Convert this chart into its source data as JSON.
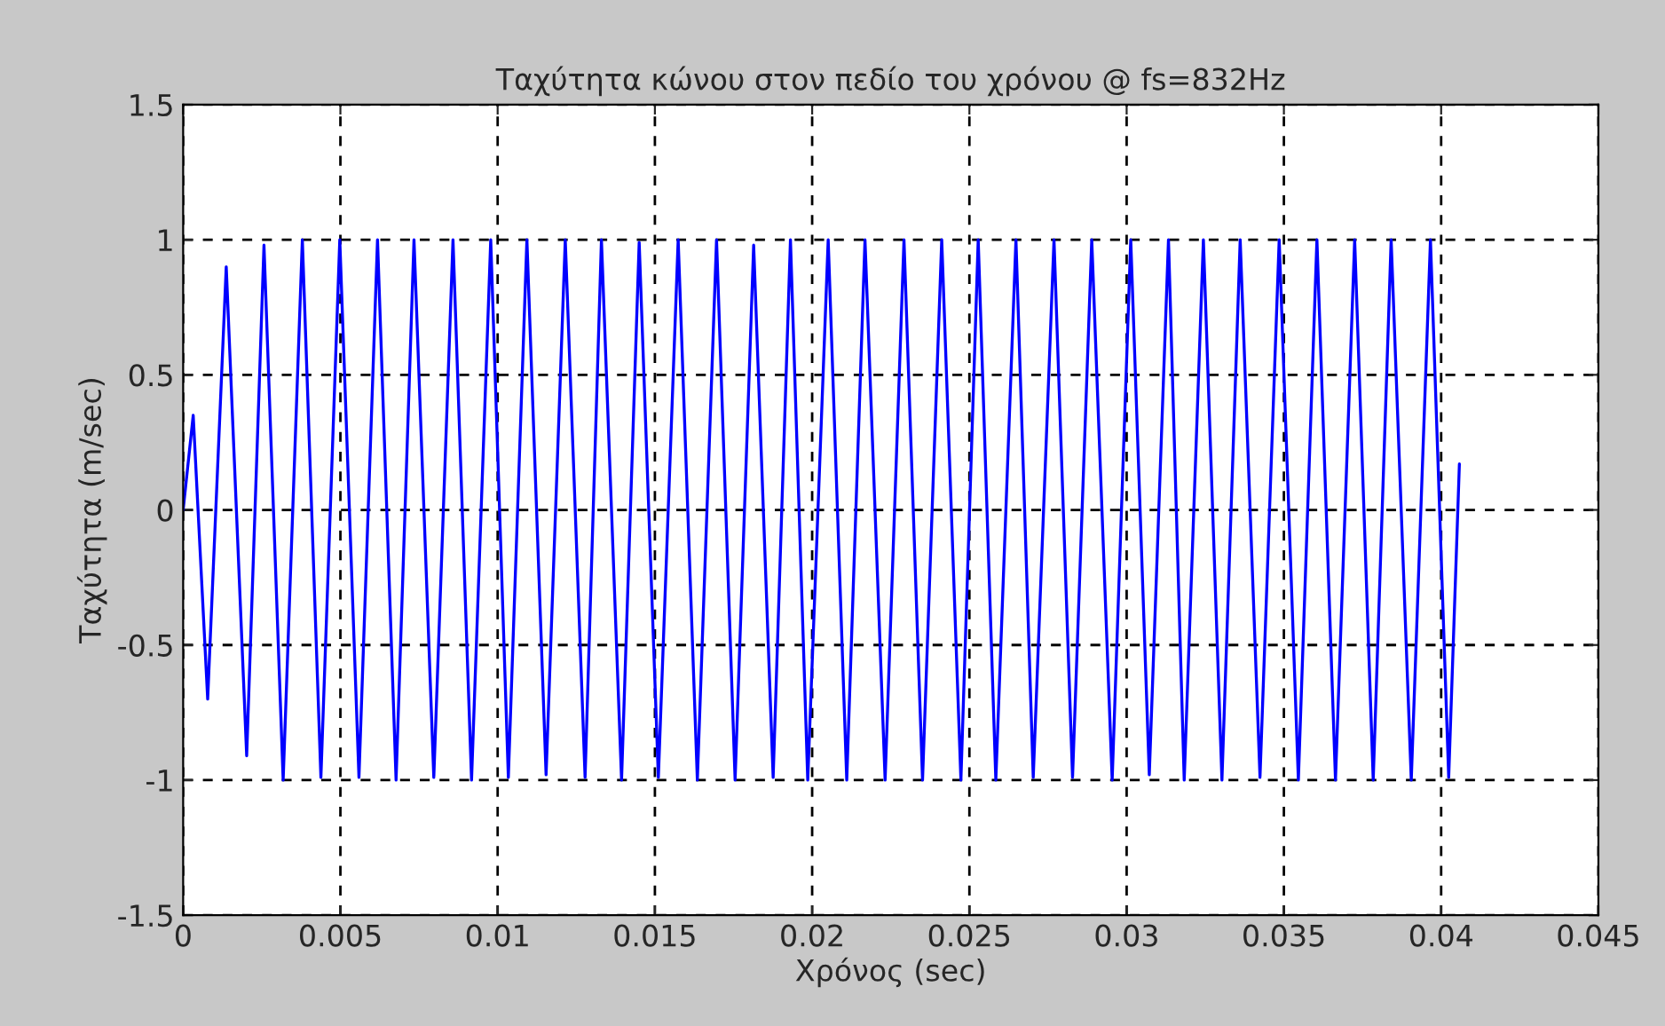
{
  "chart_data": {
    "type": "line",
    "title": "Ταχύτητα κώνου στον πεδίο του χρόνου @ fs=832Hz",
    "xlabel": "Χρόνος (sec)",
    "ylabel": "Ταχύτητα (m/sec)",
    "xlim": [
      0,
      0.045
    ],
    "ylim": [
      -1.5,
      1.5
    ],
    "xticks": [
      0,
      0.005,
      0.01,
      0.015,
      0.02,
      0.025,
      0.03,
      0.035,
      0.04,
      0.045
    ],
    "yticks": [
      -1.5,
      -1,
      -0.5,
      0,
      0.5,
      1,
      1.5
    ],
    "grid": true,
    "line_style": "solid",
    "series": [
      {
        "color": "#0000ff",
        "x": [
          0,
          0.00032,
          0.00078,
          0.00137,
          0.00202,
          0.00257,
          0.00318,
          0.00379,
          0.00438,
          0.00498,
          0.00559,
          0.00618,
          0.00677,
          0.00734,
          0.00797,
          0.00858,
          0.00917,
          0.00978,
          0.01034,
          0.01093,
          0.01154,
          0.01215,
          0.01278,
          0.0133,
          0.01394,
          0.0145,
          0.01511,
          0.01574,
          0.01635,
          0.01696,
          0.01755,
          0.01814,
          0.01876,
          0.01931,
          0.01986,
          0.02051,
          0.0211,
          0.02168,
          0.02232,
          0.02292,
          0.02351,
          0.02412,
          0.02473,
          0.02528,
          0.02584,
          0.02648,
          0.02703,
          0.02769,
          0.02828,
          0.02889,
          0.02954,
          0.03013,
          0.03072,
          0.03133,
          0.03183,
          0.03244,
          0.03303,
          0.03361,
          0.03424,
          0.03485,
          0.03546,
          0.03605,
          0.03664,
          0.03725,
          0.03784,
          0.03841,
          0.03905,
          0.03966,
          0.04024,
          0.04058
        ],
        "values": [
          0,
          0.35,
          -0.7,
          0.9,
          -0.91,
          0.98,
          -1,
          1,
          -0.99,
          1,
          -0.99,
          1,
          -1,
          1,
          -0.99,
          1,
          -1,
          1,
          -0.99,
          1,
          -0.98,
          1,
          -0.99,
          1,
          -1,
          0.99,
          -0.99,
          1,
          -1,
          1,
          -1,
          0.98,
          -0.99,
          1,
          -1,
          1,
          -1,
          1,
          -1,
          1,
          -1,
          1,
          -1,
          1,
          -1,
          1,
          -0.99,
          1,
          -0.99,
          1,
          -1,
          1,
          -0.98,
          1,
          -1,
          1,
          -1,
          1,
          -0.99,
          1,
          -1,
          1,
          -1,
          1,
          -1,
          1,
          -1,
          1,
          -0.99,
          0.17
        ]
      }
    ]
  }
}
